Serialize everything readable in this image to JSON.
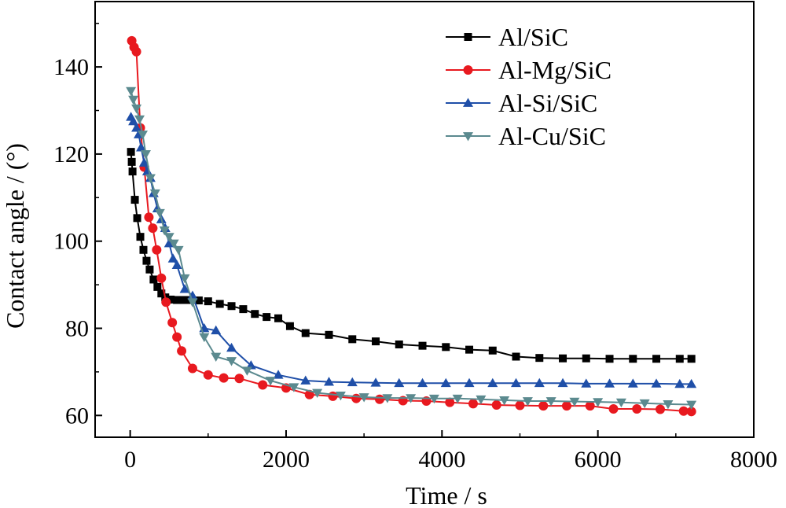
{
  "chart_data": {
    "type": "line",
    "xlabel": "Time / s",
    "ylabel": "Contact angle / (°)",
    "xlim": [
      -450,
      8000
    ],
    "ylim": [
      55,
      155
    ],
    "xticks": [
      0,
      2000,
      4000,
      6000,
      8000
    ],
    "yticks": [
      60,
      80,
      100,
      120,
      140
    ],
    "grid": false,
    "legend_position": "top-right",
    "series": [
      {
        "name": "Al/SiC",
        "color": "#000000",
        "marker": "square",
        "points": [
          [
            10,
            120.5
          ],
          [
            20,
            118.2
          ],
          [
            30,
            116
          ],
          [
            60,
            109.5
          ],
          [
            90,
            105.3
          ],
          [
            130,
            101
          ],
          [
            170,
            98
          ],
          [
            210,
            95.5
          ],
          [
            250,
            93.5
          ],
          [
            300,
            91.2
          ],
          [
            350,
            89.5
          ],
          [
            400,
            88
          ],
          [
            450,
            87.1
          ],
          [
            520,
            86.6
          ],
          [
            600,
            86.5
          ],
          [
            680,
            86.5
          ],
          [
            780,
            86.5
          ],
          [
            880,
            86.4
          ],
          [
            1000,
            86.2
          ],
          [
            1150,
            85.6
          ],
          [
            1300,
            85.1
          ],
          [
            1450,
            84.4
          ],
          [
            1600,
            83.3
          ],
          [
            1750,
            82.6
          ],
          [
            1900,
            82.3
          ],
          [
            2050,
            80.5
          ],
          [
            2250,
            78.9
          ],
          [
            2550,
            78.5
          ],
          [
            2850,
            77.5
          ],
          [
            3150,
            77
          ],
          [
            3450,
            76.3
          ],
          [
            3750,
            76
          ],
          [
            4050,
            75.7
          ],
          [
            4350,
            75.1
          ],
          [
            4650,
            74.9
          ],
          [
            4950,
            73.5
          ],
          [
            5250,
            73.2
          ],
          [
            5550,
            73.1
          ],
          [
            5850,
            73.1
          ],
          [
            6150,
            73
          ],
          [
            6450,
            73
          ],
          [
            6750,
            73
          ],
          [
            7050,
            73
          ],
          [
            7200,
            73
          ]
        ]
      },
      {
        "name": "Al-Mg/SiC",
        "color": "#e8191f",
        "marker": "circle",
        "points": [
          [
            20,
            146
          ],
          [
            50,
            144.5
          ],
          [
            80,
            143.5
          ],
          [
            130,
            126
          ],
          [
            180,
            117
          ],
          [
            240,
            105.5
          ],
          [
            290,
            103
          ],
          [
            340,
            98
          ],
          [
            400,
            91.5
          ],
          [
            460,
            86
          ],
          [
            540,
            81.3
          ],
          [
            600,
            78
          ],
          [
            660,
            74.8
          ],
          [
            800,
            70.8
          ],
          [
            1000,
            69.3
          ],
          [
            1200,
            68.6
          ],
          [
            1400,
            68.5
          ],
          [
            1700,
            67
          ],
          [
            2000,
            66.3
          ],
          [
            2300,
            64.8
          ],
          [
            2600,
            64.4
          ],
          [
            2900,
            63.9
          ],
          [
            3200,
            63.7
          ],
          [
            3500,
            63.4
          ],
          [
            3800,
            63.3
          ],
          [
            4100,
            63
          ],
          [
            4400,
            62.7
          ],
          [
            4700,
            62.4
          ],
          [
            5000,
            62.3
          ],
          [
            5300,
            62.2
          ],
          [
            5600,
            62.2
          ],
          [
            5900,
            62.2
          ],
          [
            6200,
            61.5
          ],
          [
            6500,
            61.5
          ],
          [
            6800,
            61.4
          ],
          [
            7100,
            61
          ],
          [
            7200,
            60.9
          ]
        ]
      },
      {
        "name": "Al-Si/SiC",
        "color": "#1f4fa8",
        "marker": "triangle-up",
        "points": [
          [
            10,
            128.5
          ],
          [
            40,
            127.5
          ],
          [
            80,
            126
          ],
          [
            110,
            124.5
          ],
          [
            140,
            121.5
          ],
          [
            180,
            118
          ],
          [
            220,
            116
          ],
          [
            260,
            114.5
          ],
          [
            300,
            111
          ],
          [
            350,
            107.5
          ],
          [
            400,
            105
          ],
          [
            450,
            103
          ],
          [
            500,
            99.5
          ],
          [
            550,
            96
          ],
          [
            600,
            94.5
          ],
          [
            700,
            89
          ],
          [
            800,
            87.5
          ],
          [
            950,
            80
          ],
          [
            1100,
            79.5
          ],
          [
            1300,
            75.5
          ],
          [
            1550,
            71.5
          ],
          [
            1900,
            69.3
          ],
          [
            2250,
            68
          ],
          [
            2550,
            67.7
          ],
          [
            2850,
            67.6
          ],
          [
            3150,
            67.5
          ],
          [
            3450,
            67.4
          ],
          [
            3750,
            67.4
          ],
          [
            4050,
            67.4
          ],
          [
            4350,
            67.4
          ],
          [
            4650,
            67.4
          ],
          [
            4950,
            67.4
          ],
          [
            5250,
            67.4
          ],
          [
            5550,
            67.4
          ],
          [
            5850,
            67.3
          ],
          [
            6150,
            67.3
          ],
          [
            6450,
            67.3
          ],
          [
            6750,
            67.3
          ],
          [
            7050,
            67.2
          ],
          [
            7200,
            67.2
          ]
        ]
      },
      {
        "name": "Al-Cu/SiC",
        "color": "#5b8a8f",
        "marker": "triangle-down",
        "points": [
          [
            10,
            134.5
          ],
          [
            40,
            132.5
          ],
          [
            80,
            130.5
          ],
          [
            120,
            128
          ],
          [
            160,
            124.5
          ],
          [
            200,
            120
          ],
          [
            260,
            114.5
          ],
          [
            320,
            111
          ],
          [
            380,
            106.5
          ],
          [
            440,
            102.5
          ],
          [
            500,
            101
          ],
          [
            560,
            99.5
          ],
          [
            620,
            98
          ],
          [
            700,
            91.5
          ],
          [
            800,
            86
          ],
          [
            950,
            78
          ],
          [
            1100,
            73.5
          ],
          [
            1300,
            72.5
          ],
          [
            1500,
            70.3
          ],
          [
            1800,
            68
          ],
          [
            2100,
            66.5
          ],
          [
            2400,
            65.2
          ],
          [
            2700,
            64.6
          ],
          [
            3000,
            64.2
          ],
          [
            3300,
            64
          ],
          [
            3600,
            64
          ],
          [
            3900,
            63.9
          ],
          [
            4200,
            63.9
          ],
          [
            4500,
            63.7
          ],
          [
            4800,
            63.5
          ],
          [
            5100,
            63.3
          ],
          [
            5400,
            63.3
          ],
          [
            5700,
            63.2
          ],
          [
            6000,
            63.1
          ],
          [
            6300,
            63
          ],
          [
            6600,
            62.8
          ],
          [
            6900,
            62.6
          ],
          [
            7200,
            62.5
          ]
        ]
      }
    ]
  }
}
